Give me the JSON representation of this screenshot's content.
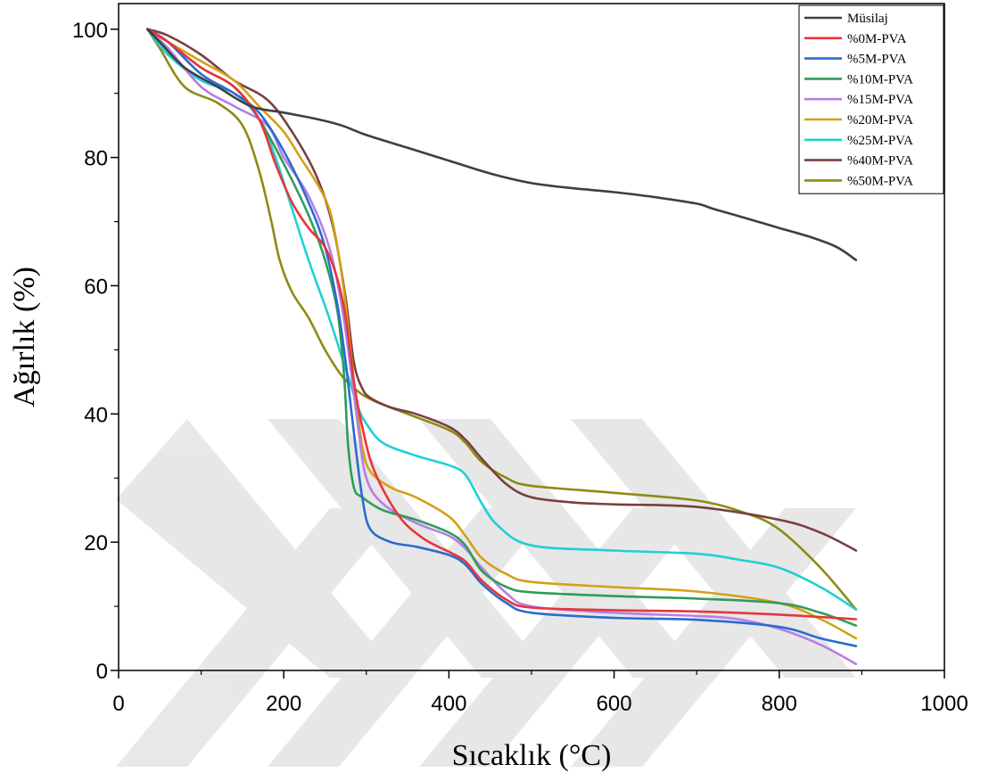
{
  "chart_data": {
    "type": "line",
    "xlabel": "Sıcaklık (°C)",
    "ylabel": "Ağırlık (%)",
    "xlim": [
      0,
      1000
    ],
    "ylim": [
      0,
      104
    ],
    "xticks": [
      0,
      200,
      400,
      600,
      800,
      1000
    ],
    "yticks": [
      0,
      20,
      40,
      60,
      80,
      100
    ],
    "grid": false,
    "legend_position": "top-right",
    "series": [
      {
        "name": "Müsilaj",
        "color": "#3f3f3f",
        "x": [
          35,
          50,
          80,
          120,
          160,
          200,
          240,
          270,
          300,
          350,
          400,
          450,
          500,
          550,
          600,
          650,
          700,
          720,
          760,
          800,
          840,
          870,
          893
        ],
        "y": [
          100,
          98,
          94,
          91,
          88,
          87,
          86,
          85,
          83.5,
          81.5,
          79.5,
          77.5,
          76,
          75.2,
          74.6,
          73.8,
          72.8,
          72,
          70.5,
          69,
          67.5,
          66,
          64
        ]
      },
      {
        "name": "%0M-PVA",
        "color": "#e8353b",
        "x": [
          35,
          60,
          100,
          140,
          170,
          190,
          210,
          230,
          250,
          265,
          275,
          285,
          295,
          310,
          340,
          370,
          400,
          420,
          440,
          470,
          500,
          600,
          700,
          800,
          893
        ],
        "y": [
          100,
          98,
          94,
          91,
          86,
          79,
          73,
          69,
          66,
          61,
          55,
          45,
          38,
          31,
          24,
          20.5,
          18.5,
          17,
          14,
          11,
          9.8,
          9.4,
          9.2,
          8.7,
          8
        ]
      },
      {
        "name": "%5M-PVA",
        "color": "#2a6bd1",
        "x": [
          35,
          60,
          100,
          140,
          170,
          200,
          230,
          250,
          265,
          275,
          285,
          295,
          305,
          330,
          360,
          400,
          420,
          440,
          470,
          500,
          600,
          700,
          800,
          850,
          893
        ],
        "y": [
          100,
          98,
          93,
          90,
          87,
          81,
          73,
          66,
          57,
          48,
          37,
          27,
          22,
          20,
          19.3,
          18,
          16.5,
          13.5,
          10.5,
          9,
          8.2,
          7.9,
          6.8,
          5,
          3.8
        ]
      },
      {
        "name": "%10M-PVA",
        "color": "#2e9c5a",
        "x": [
          35,
          60,
          100,
          140,
          170,
          200,
          230,
          250,
          265,
          273,
          278,
          285,
          295,
          320,
          360,
          400,
          420,
          440,
          470,
          500,
          600,
          700,
          800,
          850,
          893
        ],
        "y": [
          100,
          98,
          94,
          91,
          86,
          79,
          71,
          64,
          56,
          46,
          35,
          28.5,
          27,
          25,
          23.5,
          21.5,
          19.5,
          15.5,
          13,
          12.2,
          11.6,
          11.2,
          10.5,
          9,
          7
        ]
      },
      {
        "name": "%15M-PVA",
        "color": "#b67ee6",
        "x": [
          35,
          60,
          100,
          140,
          180,
          200,
          230,
          255,
          270,
          280,
          290,
          300,
          320,
          360,
          400,
          420,
          440,
          470,
          500,
          600,
          700,
          750,
          800,
          850,
          893
        ],
        "y": [
          100,
          97,
          91,
          88,
          85,
          80,
          74,
          66,
          57,
          48,
          38,
          30,
          26,
          23,
          21,
          19,
          16,
          12,
          10,
          9,
          8.5,
          8,
          6.5,
          4,
          1
        ]
      },
      {
        "name": "%20M-PVA",
        "color": "#d4a017",
        "x": [
          35,
          60,
          100,
          140,
          170,
          200,
          220,
          240,
          255,
          265,
          275,
          285,
          295,
          305,
          330,
          360,
          400,
          420,
          440,
          470,
          500,
          600,
          700,
          800,
          850,
          893
        ],
        "y": [
          100,
          98,
          95,
          92,
          88,
          84,
          80,
          76,
          72,
          66,
          57,
          45,
          35,
          31,
          28.5,
          27,
          24,
          21,
          17.5,
          15,
          13.8,
          13,
          12.3,
          10.5,
          8,
          5
        ]
      },
      {
        "name": "%25M-PVA",
        "color": "#1fd0d4",
        "x": [
          35,
          60,
          100,
          140,
          170,
          190,
          210,
          230,
          255,
          270,
          280,
          290,
          300,
          320,
          360,
          400,
          420,
          440,
          460,
          500,
          600,
          700,
          750,
          800,
          850,
          893
        ],
        "y": [
          100,
          96,
          92,
          90,
          86,
          80,
          72,
          64,
          55,
          49,
          45,
          41,
          38.5,
          35.5,
          33.5,
          32,
          30.5,
          26,
          22.5,
          19.5,
          18.7,
          18.2,
          17.3,
          16,
          13,
          9.5
        ]
      },
      {
        "name": "%40M-PVA",
        "color": "#7a3f3f",
        "x": [
          35,
          60,
          100,
          140,
          180,
          210,
          240,
          260,
          275,
          285,
          295,
          305,
          330,
          360,
          400,
          420,
          440,
          470,
          500,
          550,
          600,
          700,
          800,
          850,
          893
        ],
        "y": [
          100,
          99,
          96,
          92,
          89,
          84,
          77,
          69,
          58,
          48,
          44,
          42.5,
          41,
          40,
          38,
          36,
          33,
          29,
          27,
          26.2,
          25.9,
          25.5,
          23.5,
          21.5,
          18.7
        ]
      },
      {
        "name": "%50M-PVA",
        "color": "#8f8a14",
        "x": [
          35,
          50,
          80,
          120,
          150,
          170,
          185,
          195,
          210,
          230,
          250,
          270,
          290,
          310,
          350,
          400,
          420,
          440,
          470,
          500,
          600,
          700,
          760,
          800,
          850,
          893
        ],
        "y": [
          100,
          97,
          91,
          88.5,
          85,
          78,
          70,
          64,
          59,
          55,
          50,
          46,
          43.5,
          42,
          40,
          37.5,
          35.5,
          32.5,
          30,
          28.8,
          27.7,
          26.5,
          24.5,
          22,
          16,
          9.5
        ]
      }
    ]
  }
}
